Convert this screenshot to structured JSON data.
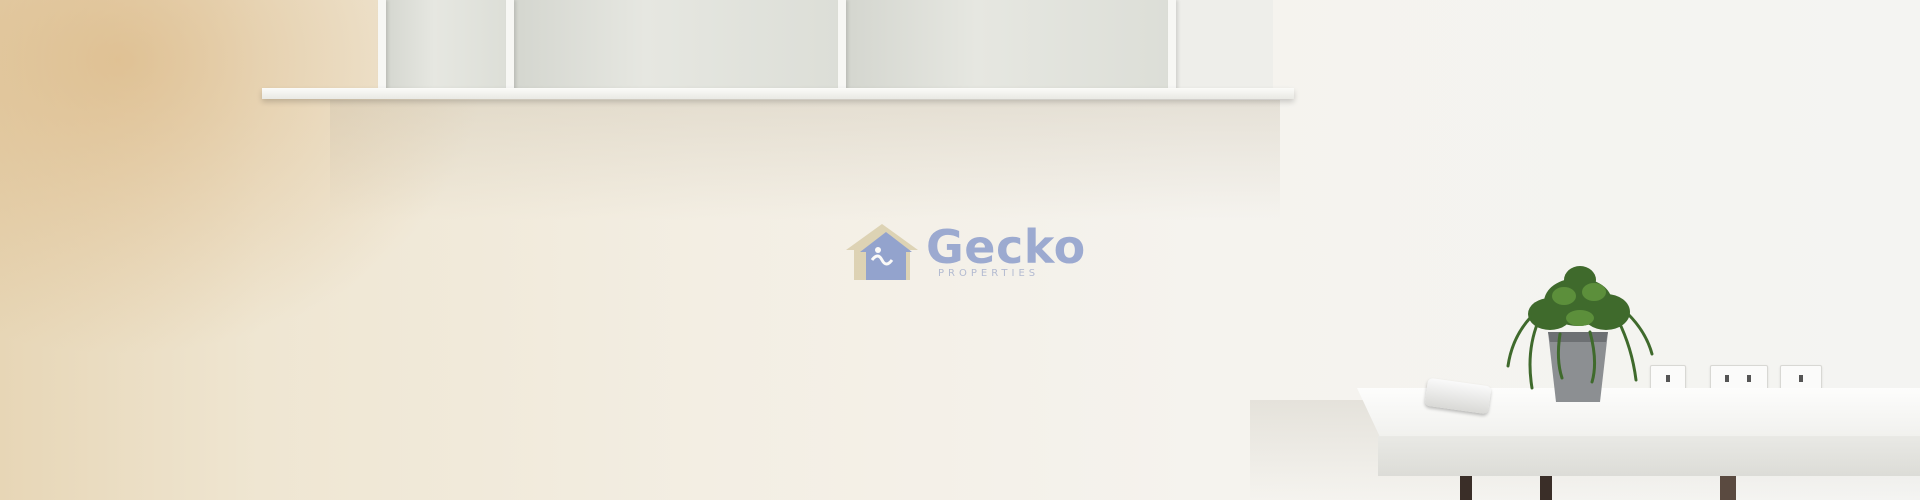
{
  "watermark": {
    "brand": "Gecko",
    "tagline": "PROPERTIES",
    "colors": {
      "text": "#7b8fc7",
      "house": "#6f86c4",
      "accent": "#c9b98a"
    }
  },
  "scene_objects": {
    "shelf": "wall-shelf",
    "desk": "white-desk",
    "plant": "potted-plant-icon",
    "remote": "ac-remote",
    "outlets": "wall-outlets"
  }
}
